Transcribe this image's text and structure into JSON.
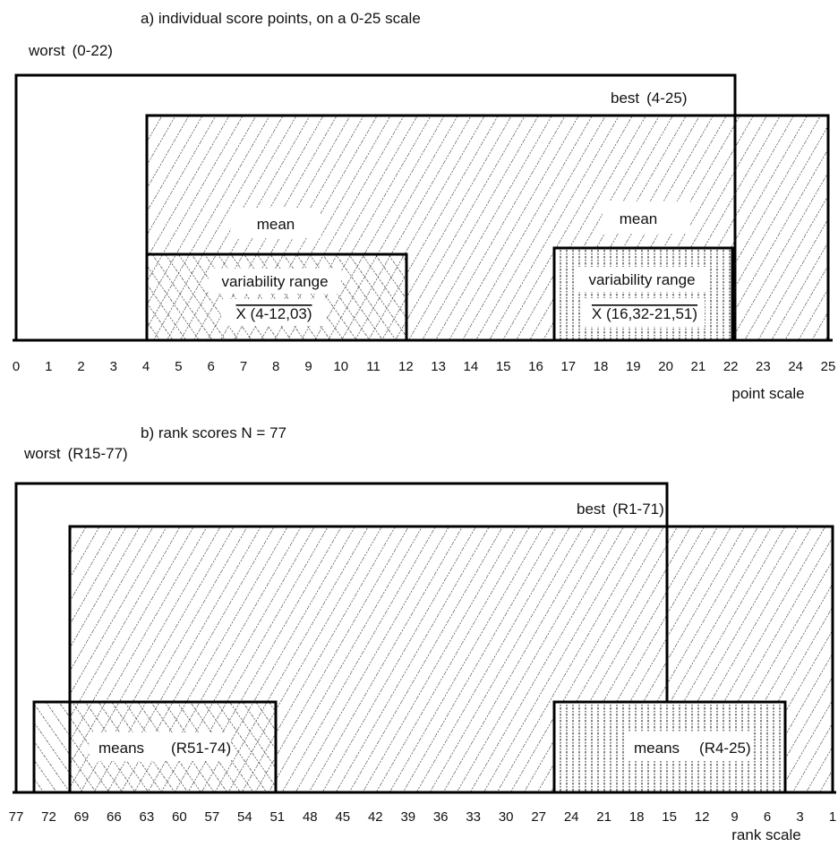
{
  "chart_data": [
    {
      "type": "range-bars",
      "caption": "a)  individual score points, on a 0-25 scale",
      "axis": {
        "min": 0,
        "max": 25,
        "ticks": [
          "0",
          "1",
          "2",
          "3",
          "4",
          "5",
          "6",
          "7",
          "8",
          "9",
          "10",
          "11",
          "12",
          "13",
          "14",
          "15",
          "16",
          "17",
          "18",
          "19",
          "20",
          "21",
          "22",
          "23",
          "24",
          "25"
        ],
        "label": "point scale"
      },
      "ranges": [
        {
          "id": "worst",
          "label": "worst",
          "range_text": "(0-22)",
          "from": 0,
          "to": 22,
          "fill": "none"
        },
        {
          "id": "best",
          "label": "best",
          "range_text": "(4-25)",
          "from": 4,
          "to": 25,
          "fill": "hatch-forward"
        },
        {
          "id": "mean-low",
          "title": "mean",
          "label": "variability range",
          "range_text": "X (4-12,03)",
          "from": 4,
          "to": 12.03,
          "fill": "hatch-back"
        },
        {
          "id": "mean-high",
          "title": "mean",
          "label": "variability range",
          "range_text": "X (16,32-21,51)",
          "from": 16.32,
          "to": 21.51,
          "fill": "vertical-dotted"
        }
      ]
    },
    {
      "type": "range-bars",
      "caption": "b)  rank scores N = 77",
      "axis": {
        "from": 77,
        "to": 1,
        "ticks": [
          "77",
          "72",
          "69",
          "66",
          "63",
          "60",
          "57",
          "54",
          "51",
          "48",
          "45",
          "42",
          "39",
          "36",
          "33",
          "30",
          "27",
          "24",
          "21",
          "18",
          "15",
          "12",
          "9",
          "6",
          "3",
          "1"
        ],
        "label": "rank scale"
      },
      "ranges": [
        {
          "id": "worst",
          "label": "worst",
          "range_text": "(R15-77)",
          "from": 77,
          "to": 15,
          "fill": "none"
        },
        {
          "id": "best",
          "label": "best",
          "range_text": "(R1-71)",
          "from": 71,
          "to": 1,
          "fill": "hatch-forward"
        },
        {
          "id": "means-low",
          "label": "means",
          "range_text": "(R51-74)",
          "from": 74,
          "to": 51,
          "fill": "hatch-back"
        },
        {
          "id": "means-high",
          "label": "means",
          "range_text": "(R4-25)",
          "from": 25,
          "to": 4,
          "fill": "vertical-dotted"
        }
      ]
    }
  ]
}
